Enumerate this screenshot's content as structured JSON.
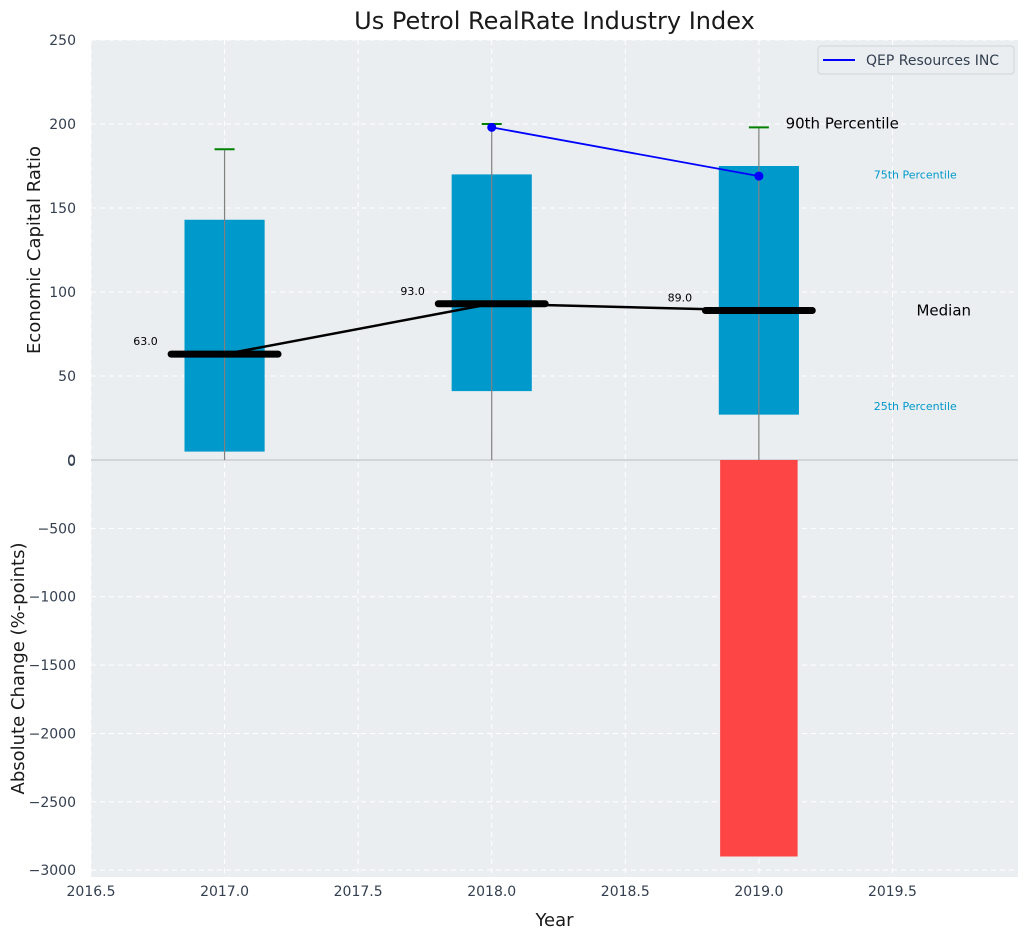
{
  "chart_data": {
    "type": "bar",
    "title": "Us Petrol RealRate Industry Index",
    "xlabel": "Year",
    "colors": {
      "box": "#0099cc",
      "change_bar": "#ff3b3b",
      "whisker_cap": "#008000",
      "company_line": "#0000ff",
      "median_line": "#000000",
      "panel_bg": "#eaeef0"
    },
    "top_panel": {
      "ylabel": "Economic Capital Ratio",
      "ylim": [
        0,
        250
      ],
      "yticks": [
        "0",
        "50",
        "100",
        "150",
        "200",
        "250"
      ],
      "years": [
        2017,
        2018,
        2019
      ],
      "p25": [
        5,
        41,
        27
      ],
      "p75": [
        143,
        170,
        175
      ],
      "p90": [
        185,
        200,
        198
      ],
      "median": [
        63,
        93,
        89
      ],
      "median_labels": [
        "63.0",
        "93.0",
        "89.0"
      ],
      "company": {
        "name": "QEP Resources INC",
        "x": [
          2018,
          2019
        ],
        "values": [
          198,
          169
        ]
      },
      "annotations": {
        "p90": "90th Percentile",
        "p75": "75th Percentile",
        "median": "Median",
        "p25": "25th Percentile"
      },
      "legend_position": "top-right"
    },
    "bottom_panel": {
      "ylabel": "Absolute Change (%-points)",
      "ylim": [
        -3050,
        0
      ],
      "yticks": [
        "0",
        "−500",
        "−1000",
        "−1500",
        "−2000",
        "−2500",
        "−3000"
      ],
      "x": [
        2019
      ],
      "values": [
        -2900
      ]
    },
    "xlim": [
      2016.5,
      2019.97
    ],
    "xticks": [
      "2016.5",
      "2017.0",
      "2017.5",
      "2018.0",
      "2018.5",
      "2019.0",
      "2019.5"
    ],
    "grid": true
  }
}
